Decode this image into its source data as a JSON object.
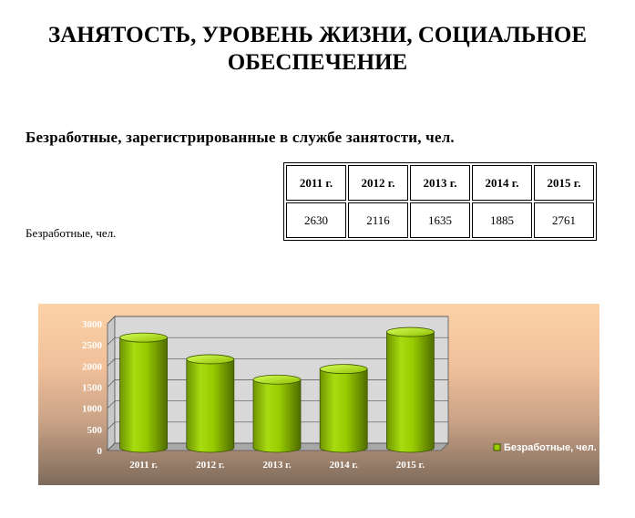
{
  "page": {
    "title_line1": "ЗАНЯТОСТЬ, УРОВЕНЬ ЖИЗНИ, СОЦИАЛЬНОЕ",
    "title_line2": "ОБЕСПЕЧЕНИЕ",
    "section_title": "Безработные,  зарегистрированные  в  службе  занятости,  чел."
  },
  "table": {
    "headers": [
      "2011 г.",
      "2012 г.",
      "2013 г.",
      "2014 г.",
      "2015 г."
    ],
    "row_label": "Безработные, чел.",
    "values": [
      "2630",
      "2116",
      "1635",
      "1885",
      "2761"
    ]
  },
  "chart_data": {
    "type": "bar",
    "categories": [
      "2011 г.",
      "2012 г.",
      "2013 г.",
      "2014 г.",
      "2015 г."
    ],
    "series": [
      {
        "name": "Безработные, чел.",
        "values": [
          2630,
          2116,
          1635,
          1885,
          2761
        ]
      }
    ],
    "yticks": [
      "0",
      "500",
      "1000",
      "1500",
      "2000",
      "2500",
      "3000"
    ],
    "ylim": [
      0,
      3000
    ],
    "grid": true,
    "legend": "right",
    "bar_style": "3d-cylinder",
    "colors": {
      "bar": "#99cc00",
      "bar_dark": "#5a7a00",
      "bar_light": "#d6ff5a"
    }
  }
}
